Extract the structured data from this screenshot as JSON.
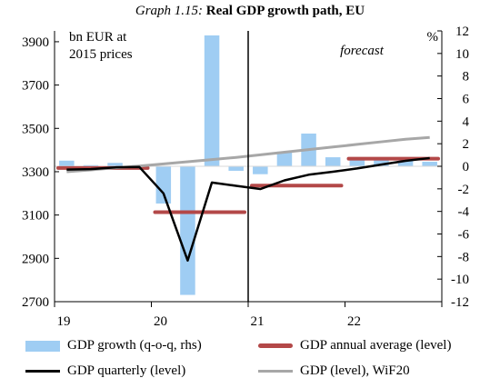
{
  "title": {
    "prefix": "Graph 1.15:",
    "main": "Real GDP growth path, EU"
  },
  "chart_data": {
    "type": "bar+line",
    "left_axis": {
      "unit_label_line1": "bn EUR at",
      "unit_label_line2": "2015 prices",
      "ylim": [
        2700,
        3950
      ],
      "ticks": [
        2700,
        2900,
        3100,
        3300,
        3500,
        3700,
        3900
      ]
    },
    "right_axis": {
      "unit_label": "%",
      "ylim": [
        -12,
        12
      ],
      "ticks": [
        -12,
        -10,
        -8,
        -6,
        -4,
        -2,
        0,
        2,
        4,
        6,
        8,
        10,
        12
      ]
    },
    "x_axis": {
      "year_labels": [
        "19",
        "20",
        "21",
        "22"
      ],
      "quarters": [
        "2019Q1",
        "2019Q2",
        "2019Q3",
        "2019Q4",
        "2020Q1",
        "2020Q2",
        "2020Q3",
        "2020Q4",
        "2021Q1",
        "2021Q2",
        "2021Q3",
        "2021Q4",
        "2022Q1",
        "2022Q2",
        "2022Q3",
        "2022Q4"
      ]
    },
    "forecast_label": "forecast",
    "forecast_starts_after": "2020Q4",
    "colors": {
      "bars": "#9fcdf3",
      "annual": "#b34848",
      "quarterly": "#000000",
      "wif20": "#a7a7a7"
    },
    "series": [
      {
        "name": "GDP growth (q-o-q, rhs)",
        "type": "bar",
        "axis": "right",
        "values": [
          0.5,
          0.1,
          0.3,
          0.1,
          -3.3,
          -11.4,
          11.6,
          -0.4,
          -0.7,
          1.3,
          2.9,
          0.8,
          0.6,
          0.6,
          0.5,
          0.4
        ]
      },
      {
        "name": "GDP annual average (level)",
        "type": "segments",
        "axis": "left",
        "segments": [
          {
            "from": "2019Q1",
            "to": "2019Q4",
            "value": 3317
          },
          {
            "from": "2020Q1",
            "to": "2020Q4",
            "value": 3113
          },
          {
            "from": "2021Q1",
            "to": "2021Q4",
            "value": 3236
          },
          {
            "from": "2022Q1",
            "to": "2022Q4",
            "value": 3360
          }
        ]
      },
      {
        "name": "GDP quarterly (level)",
        "type": "line",
        "axis": "left",
        "values": [
          3310,
          3312,
          3320,
          3322,
          3200,
          2890,
          3250,
          3235,
          3220,
          3260,
          3286,
          3300,
          3315,
          3333,
          3350,
          3363
        ]
      },
      {
        "name": "GDP (level), WiF20",
        "type": "line",
        "axis": "left",
        "values": [
          3300,
          3308,
          3318,
          3326,
          3336,
          3346,
          3356,
          3366,
          3378,
          3390,
          3402,
          3414,
          3426,
          3438,
          3450,
          3458
        ]
      }
    ]
  }
}
